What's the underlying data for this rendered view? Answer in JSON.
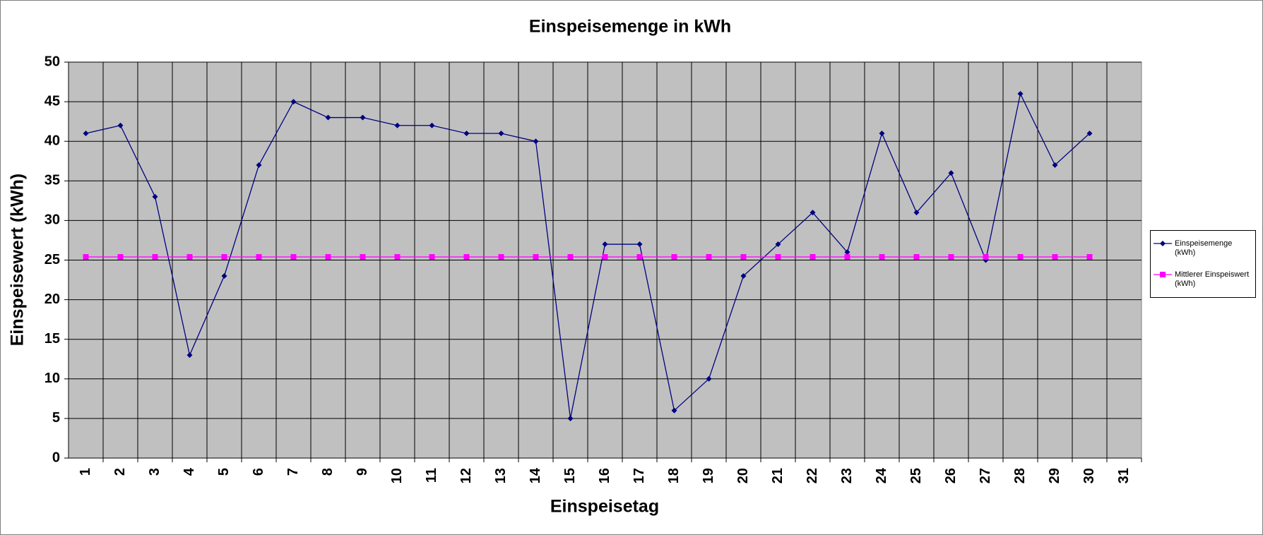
{
  "chart_data": {
    "type": "line",
    "title": "Einspeisemenge in kWh",
    "x_label": "Einspeisetag",
    "y_label": "Einspeisewert  (kWh)",
    "categories": [
      "1",
      "2",
      "3",
      "4",
      "5",
      "6",
      "7",
      "8",
      "9",
      "10",
      "11",
      "12",
      "13",
      "14",
      "15",
      "16",
      "17",
      "18",
      "19",
      "20",
      "21",
      "22",
      "23",
      "24",
      "25",
      "26",
      "27",
      "28",
      "29",
      "30",
      "31"
    ],
    "series": [
      {
        "name": "Einspeisemenge (kWh)",
        "color": "#000080",
        "marker": "diamond",
        "values": [
          41,
          42,
          33,
          13,
          23,
          37,
          45,
          43,
          43,
          42,
          42,
          41,
          41,
          40,
          5,
          27,
          27,
          6,
          10,
          23,
          27,
          31,
          26,
          41,
          31,
          36,
          25,
          46,
          37,
          41,
          null
        ]
      },
      {
        "name": "Mittlerer Einspeiswert (kWh)",
        "color": "#ff00ff",
        "marker": "square",
        "values": [
          25.4,
          25.4,
          25.4,
          25.4,
          25.4,
          25.4,
          25.4,
          25.4,
          25.4,
          25.4,
          25.4,
          25.4,
          25.4,
          25.4,
          25.4,
          25.4,
          25.4,
          25.4,
          25.4,
          25.4,
          25.4,
          25.4,
          25.4,
          25.4,
          25.4,
          25.4,
          25.4,
          25.4,
          25.4,
          25.4,
          null
        ]
      }
    ],
    "ylim": [
      0,
      50
    ],
    "yticks": [
      0,
      5,
      10,
      15,
      20,
      25,
      30,
      35,
      40,
      45,
      50
    ],
    "grid": true,
    "legend": "right",
    "plot_background": "#c0c0c0"
  }
}
